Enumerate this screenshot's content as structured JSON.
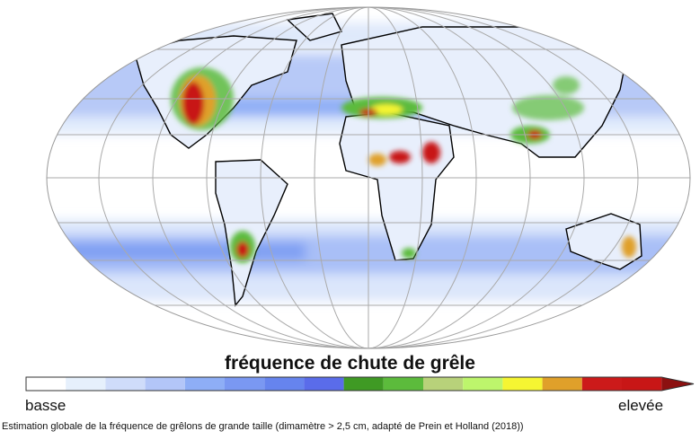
{
  "legend": {
    "title": "fréquence de chute de grêle",
    "low_label": "basse",
    "high_label": "elevée",
    "colors": [
      "#ffffff",
      "#e6f0fc",
      "#cfdcfa",
      "#b3c6f8",
      "#8eaef6",
      "#7a98f2",
      "#6684ee",
      "#5a6cea",
      "#3f9a24",
      "#5cbb3c",
      "#b8d27a",
      "#bdf56c",
      "#f5f532",
      "#e0a02a",
      "#cc1a1a",
      "#c81616"
    ],
    "overflow_color": "#8c1010"
  },
  "caption": "Estimation globale de la fréquence de grêlons de grande taille (dimamètre > 2,5 cm, adapté de Prein et Holland (2018))"
}
